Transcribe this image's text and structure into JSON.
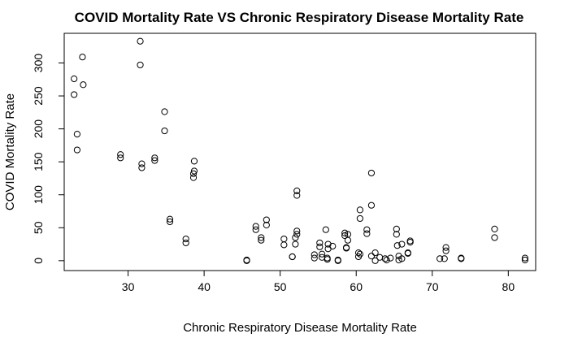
{
  "chart_data": {
    "type": "scatter",
    "title": "COVID Mortality Rate VS Chronic Respiratory Disease Mortality Rate",
    "xlabel": "Chronic Respiratory Disease Mortality Rate",
    "ylabel": "COVID Mortality Rate",
    "xlim": [
      21.6,
      83.6
    ],
    "ylim": [
      -15,
      345
    ],
    "xticks": [
      30,
      40,
      50,
      60,
      70,
      80
    ],
    "yticks": [
      0,
      50,
      100,
      150,
      200,
      250,
      300
    ],
    "grid": false,
    "legend": "none",
    "points": [
      {
        "x": 31.6,
        "y": 333
      },
      {
        "x": 24.0,
        "y": 309
      },
      {
        "x": 31.6,
        "y": 297
      },
      {
        "x": 22.9,
        "y": 276
      },
      {
        "x": 24.1,
        "y": 267
      },
      {
        "x": 22.9,
        "y": 252
      },
      {
        "x": 34.8,
        "y": 226
      },
      {
        "x": 34.8,
        "y": 197
      },
      {
        "x": 23.3,
        "y": 192
      },
      {
        "x": 23.3,
        "y": 168
      },
      {
        "x": 29.0,
        "y": 161
      },
      {
        "x": 29.0,
        "y": 156
      },
      {
        "x": 33.5,
        "y": 156
      },
      {
        "x": 33.5,
        "y": 152
      },
      {
        "x": 38.7,
        "y": 151
      },
      {
        "x": 31.8,
        "y": 147
      },
      {
        "x": 31.8,
        "y": 141
      },
      {
        "x": 38.7,
        "y": 136
      },
      {
        "x": 38.6,
        "y": 132
      },
      {
        "x": 38.6,
        "y": 126
      },
      {
        "x": 52.2,
        "y": 106
      },
      {
        "x": 52.2,
        "y": 99
      },
      {
        "x": 62.0,
        "y": 133
      },
      {
        "x": 62.0,
        "y": 84
      },
      {
        "x": 35.5,
        "y": 63
      },
      {
        "x": 35.5,
        "y": 59
      },
      {
        "x": 48.2,
        "y": 62
      },
      {
        "x": 48.2,
        "y": 54
      },
      {
        "x": 60.5,
        "y": 77
      },
      {
        "x": 60.5,
        "y": 64
      },
      {
        "x": 37.6,
        "y": 33
      },
      {
        "x": 37.6,
        "y": 27
      },
      {
        "x": 46.8,
        "y": 52
      },
      {
        "x": 46.8,
        "y": 47
      },
      {
        "x": 47.5,
        "y": 35
      },
      {
        "x": 47.5,
        "y": 31
      },
      {
        "x": 50.5,
        "y": 33
      },
      {
        "x": 50.5,
        "y": 24
      },
      {
        "x": 52.2,
        "y": 45
      },
      {
        "x": 52.2,
        "y": 40
      },
      {
        "x": 52.0,
        "y": 35
      },
      {
        "x": 52.0,
        "y": 25
      },
      {
        "x": 51.6,
        "y": 6
      },
      {
        "x": 51.6,
        "y": 6
      },
      {
        "x": 56.0,
        "y": 47
      },
      {
        "x": 55.2,
        "y": 27
      },
      {
        "x": 55.2,
        "y": 21
      },
      {
        "x": 56.3,
        "y": 25
      },
      {
        "x": 56.3,
        "y": 18
      },
      {
        "x": 56.9,
        "y": 22
      },
      {
        "x": 54.5,
        "y": 9
      },
      {
        "x": 54.5,
        "y": 4
      },
      {
        "x": 55.5,
        "y": 10
      },
      {
        "x": 55.5,
        "y": 5
      },
      {
        "x": 56.2,
        "y": 4
      },
      {
        "x": 56.2,
        "y": 2
      },
      {
        "x": 57.6,
        "y": 1
      },
      {
        "x": 57.6,
        "y": 0
      },
      {
        "x": 45.6,
        "y": 1
      },
      {
        "x": 45.6,
        "y": 0
      },
      {
        "x": 58.5,
        "y": 42
      },
      {
        "x": 58.9,
        "y": 40
      },
      {
        "x": 58.9,
        "y": 31
      },
      {
        "x": 58.5,
        "y": 38
      },
      {
        "x": 58.7,
        "y": 20
      },
      {
        "x": 58.7,
        "y": 19
      },
      {
        "x": 60.3,
        "y": 12
      },
      {
        "x": 60.3,
        "y": 6
      },
      {
        "x": 60.5,
        "y": 10
      },
      {
        "x": 61.4,
        "y": 47
      },
      {
        "x": 61.4,
        "y": 41
      },
      {
        "x": 62.0,
        "y": 7
      },
      {
        "x": 62.5,
        "y": 12
      },
      {
        "x": 62.5,
        "y": 0
      },
      {
        "x": 63.1,
        "y": 5
      },
      {
        "x": 63.8,
        "y": 3
      },
      {
        "x": 64.0,
        "y": 1
      },
      {
        "x": 64.5,
        "y": 4
      },
      {
        "x": 65.3,
        "y": 48
      },
      {
        "x": 65.3,
        "y": 40
      },
      {
        "x": 65.4,
        "y": 23
      },
      {
        "x": 65.6,
        "y": 7
      },
      {
        "x": 65.6,
        "y": 1
      },
      {
        "x": 66.0,
        "y": 25
      },
      {
        "x": 66.0,
        "y": 3
      },
      {
        "x": 67.1,
        "y": 30
      },
      {
        "x": 67.1,
        "y": 28
      },
      {
        "x": 66.8,
        "y": 12
      },
      {
        "x": 66.8,
        "y": 11
      },
      {
        "x": 71.0,
        "y": 3
      },
      {
        "x": 71.6,
        "y": 3
      },
      {
        "x": 71.8,
        "y": 20
      },
      {
        "x": 71.8,
        "y": 15
      },
      {
        "x": 73.8,
        "y": 4
      },
      {
        "x": 73.8,
        "y": 3
      },
      {
        "x": 78.2,
        "y": 48
      },
      {
        "x": 78.2,
        "y": 35
      },
      {
        "x": 82.2,
        "y": 4
      },
      {
        "x": 82.2,
        "y": 1
      }
    ]
  }
}
